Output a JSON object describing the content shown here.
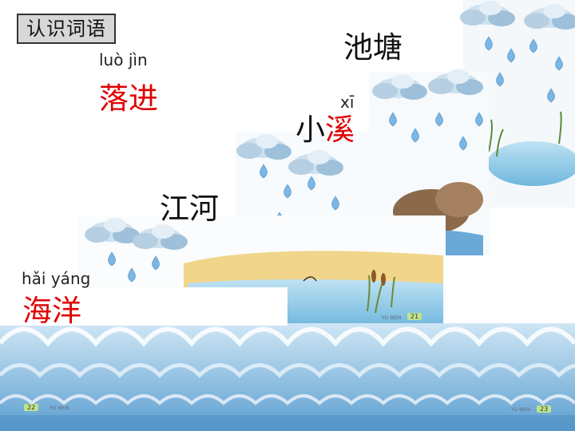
{
  "title": "认识词语",
  "words": [
    {
      "pinyin": "luò jìn",
      "text": "落进"
    },
    {
      "text": "池塘"
    },
    {
      "pinyin": "xī",
      "text_part1": "小",
      "text_part2": "溪"
    },
    {
      "text": "江河"
    },
    {
      "pinyin": "hǎi yáng",
      "text": "海洋"
    }
  ],
  "page_numbers": {
    "p21": "21",
    "p22": "22",
    "p23": "23"
  },
  "page_tags": {
    "left": "YU WEN",
    "right": "YU WEN",
    "mid": "YU WEN"
  },
  "colors": {
    "highlight": "#e10000",
    "water": "#5aa7d8",
    "sky": "#b9dcef"
  }
}
